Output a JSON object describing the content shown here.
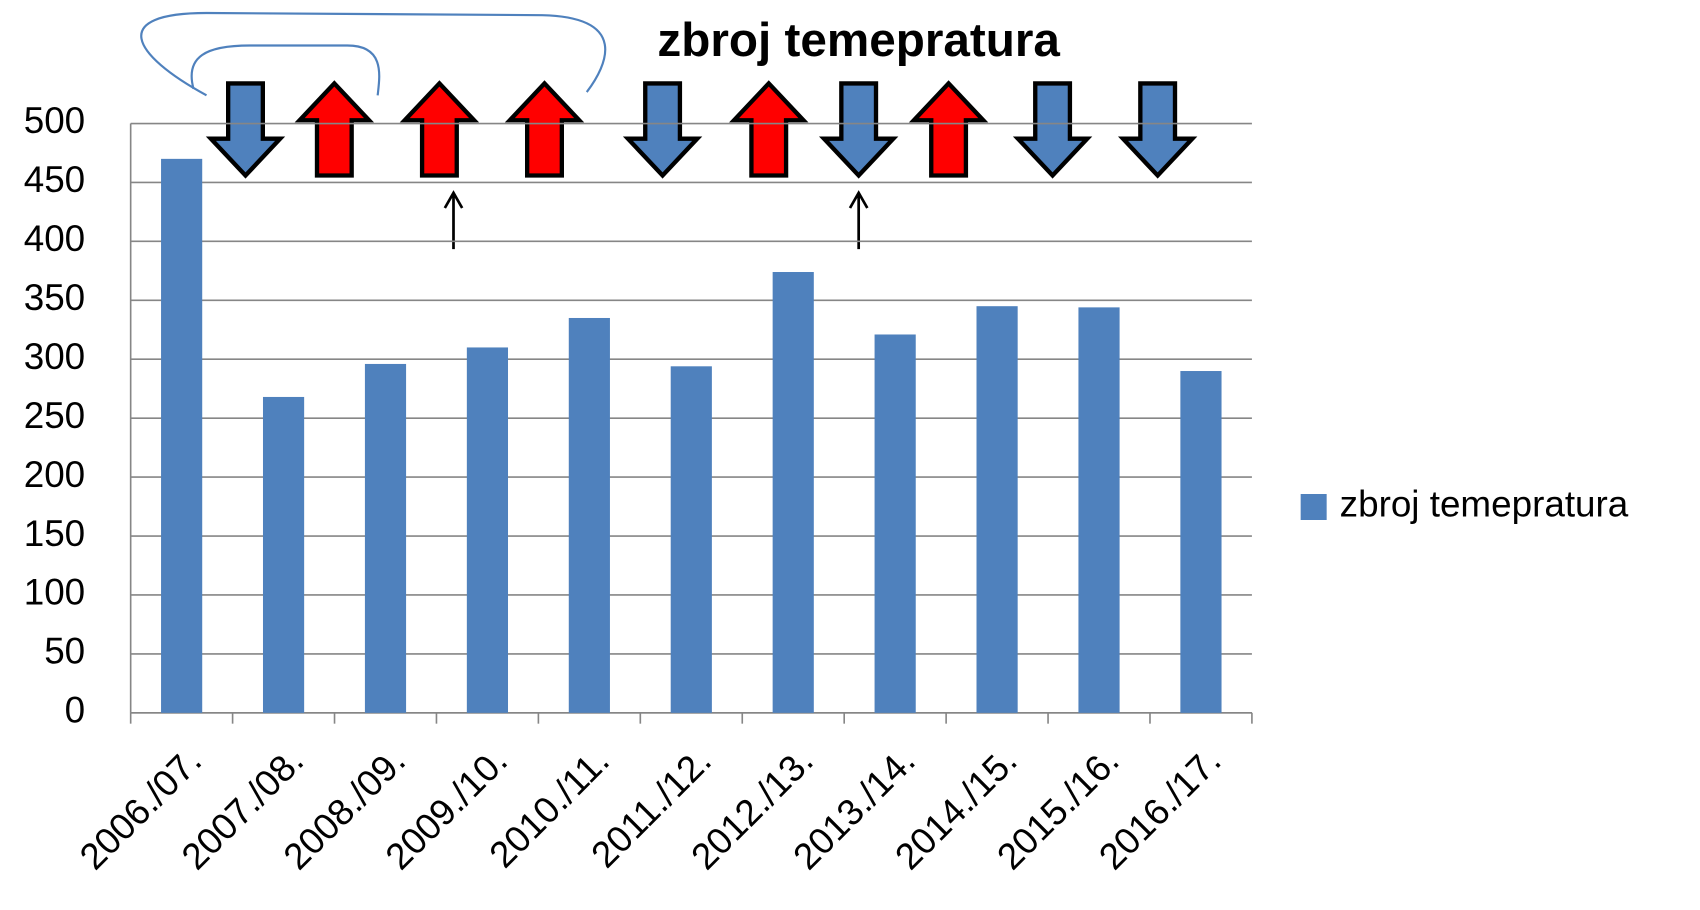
{
  "chart_data": {
    "type": "bar",
    "title": "zbroj temepratura",
    "categories": [
      "2006./07.",
      "2007./08.",
      "2008./09.",
      "2009./10.",
      "2010./11.",
      "2011./12.",
      "2012./13.",
      "2013./14.",
      "2014./15.",
      "2015./16.",
      "2016./17."
    ],
    "series": [
      {
        "name": "zbroj temepratura",
        "color": "#4f81bd",
        "values": [
          470,
          268,
          296,
          310,
          335,
          294,
          374,
          321,
          345,
          344,
          290
        ]
      }
    ],
    "ylim": [
      0,
      500
    ],
    "yticks": [
      0,
      50,
      100,
      150,
      200,
      250,
      300,
      350,
      400,
      450,
      500
    ],
    "grid": true,
    "legend": "right"
  }
}
